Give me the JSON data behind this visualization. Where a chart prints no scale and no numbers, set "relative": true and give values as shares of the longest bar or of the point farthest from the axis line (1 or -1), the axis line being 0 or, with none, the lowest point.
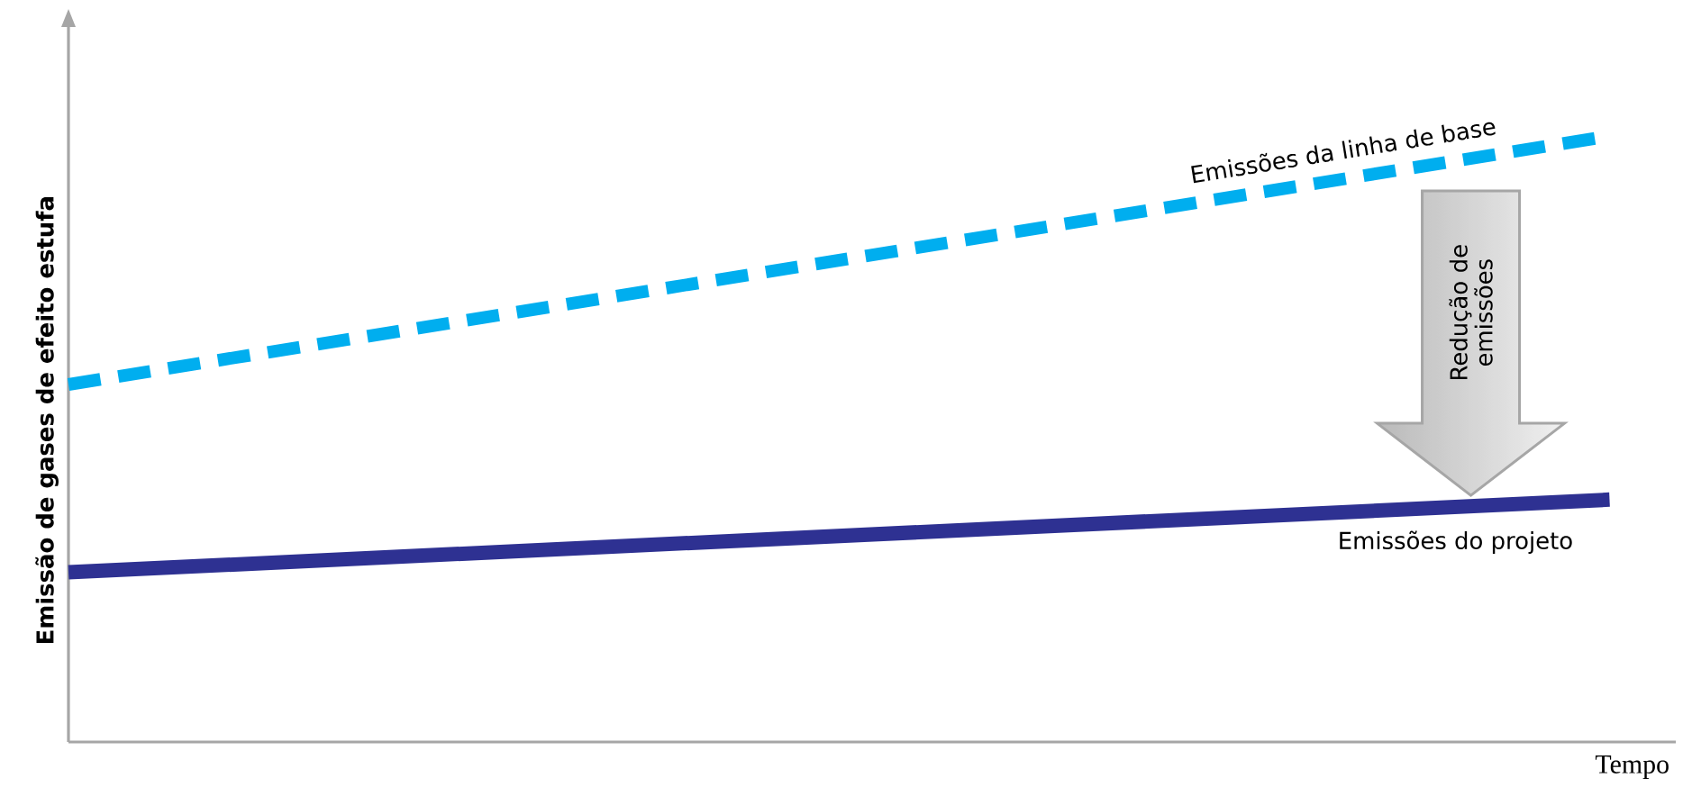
{
  "chart_data": {
    "type": "line",
    "xlabel": "Tempo",
    "ylabel": "Emissão de gases de efeito estufa",
    "categories": [
      null,
      null
    ],
    "relative": true,
    "series": [
      {
        "name": "Emissões da linha de base",
        "color": "#00aeef",
        "values": [
          0.59,
          1
        ],
        "line_style": "dashed"
      },
      {
        "name": "Emissões do projeto",
        "color": "#2e3192",
        "values": [
          0.28,
          0.4
        ],
        "line_style": "solid"
      }
    ],
    "annotations": [
      "Redução de emissões"
    ]
  }
}
